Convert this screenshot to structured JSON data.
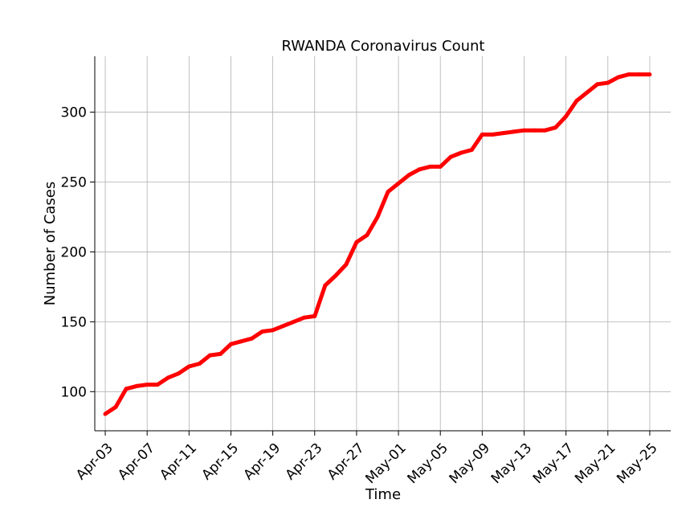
{
  "chart_data": {
    "type": "line",
    "title": "RWANDA Coronavirus Count",
    "xlabel": "Time",
    "ylabel": "Number of Cases",
    "x_tick_labels": [
      "Apr-03",
      "Apr-07",
      "Apr-11",
      "Apr-15",
      "Apr-19",
      "Apr-23",
      "Apr-27",
      "May-01",
      "May-05",
      "May-09",
      "May-13",
      "May-17",
      "May-21",
      "May-25"
    ],
    "y_ticks": [
      100,
      150,
      200,
      250,
      300
    ],
    "ylim": [
      72,
      340
    ],
    "xlim": [
      "2020-04-02",
      "2020-05-27"
    ],
    "grid": true,
    "line_color": "#ff0000",
    "series": [
      {
        "x": [
          "2020-04-03",
          "2020-04-04",
          "2020-04-05",
          "2020-04-06",
          "2020-04-07",
          "2020-04-08",
          "2020-04-09",
          "2020-04-10",
          "2020-04-11",
          "2020-04-12",
          "2020-04-13",
          "2020-04-14",
          "2020-04-15",
          "2020-04-16",
          "2020-04-17",
          "2020-04-18",
          "2020-04-19",
          "2020-04-20",
          "2020-04-21",
          "2020-04-22",
          "2020-04-23",
          "2020-04-24",
          "2020-04-25",
          "2020-04-26",
          "2020-04-27",
          "2020-04-28",
          "2020-04-29",
          "2020-04-30",
          "2020-05-01",
          "2020-05-02",
          "2020-05-03",
          "2020-05-04",
          "2020-05-05",
          "2020-05-06",
          "2020-05-07",
          "2020-05-08",
          "2020-05-09",
          "2020-05-10",
          "2020-05-11",
          "2020-05-12",
          "2020-05-13",
          "2020-05-14",
          "2020-05-15",
          "2020-05-16",
          "2020-05-17",
          "2020-05-18",
          "2020-05-19",
          "2020-05-20",
          "2020-05-21",
          "2020-05-22",
          "2020-05-23",
          "2020-05-24",
          "2020-05-25"
        ],
        "values": [
          84,
          89,
          102,
          104,
          105,
          105,
          110,
          113,
          118,
          120,
          126,
          127,
          134,
          136,
          138,
          143,
          144,
          147,
          150,
          153,
          154,
          176,
          183,
          191,
          207,
          212,
          225,
          243,
          249,
          255,
          259,
          261,
          261,
          268,
          271,
          273,
          284,
          284,
          285,
          286,
          287,
          287,
          287,
          289,
          297,
          308,
          314,
          320,
          321,
          325,
          327,
          327,
          327
        ]
      }
    ]
  }
}
